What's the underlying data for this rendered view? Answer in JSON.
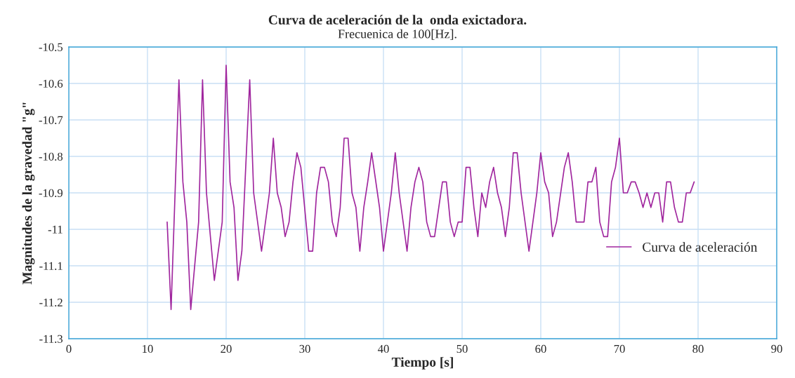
{
  "chart_data": {
    "type": "line",
    "title": "Curva de aceleración de la  onda exictadora.",
    "subtitle": "Frecuenica de 100[Hz].",
    "xlabel": "Tiempo [s]",
    "ylabel": "Magnitudes de la gravedad \"g\"",
    "series": [
      {
        "name": "Curva de aceleración",
        "color": "#a0269e",
        "x": [
          12.5,
          13.0,
          14.0,
          14.5,
          15.0,
          15.5,
          16.5,
          17.0,
          17.5,
          18.5,
          19.5,
          20.0,
          20.5,
          21.0,
          21.5,
          22.0,
          23.0,
          23.5,
          24.5,
          25.5,
          26.0,
          26.5,
          27.0,
          27.5,
          28.0,
          28.5,
          29.0,
          29.5,
          30.5,
          31.0,
          31.5,
          32.0,
          32.5,
          33.0,
          33.5,
          34.0,
          34.5,
          35.0,
          35.5,
          36.0,
          36.5,
          37.0,
          37.5,
          38.0,
          38.5,
          39.5,
          40.0,
          41.0,
          41.5,
          42.0,
          43.0,
          43.5,
          44.0,
          44.5,
          45.0,
          45.5,
          46.0,
          46.5,
          47.5,
          48.0,
          48.5,
          49.0,
          49.5,
          50.0,
          50.5,
          51.0,
          51.5,
          52.0,
          52.5,
          53.0,
          53.5,
          54.0,
          54.5,
          55.0,
          55.5,
          56.0,
          56.5,
          57.0,
          57.5,
          58.5,
          59.5,
          60.0,
          60.5,
          61.0,
          61.5,
          62.0,
          63.0,
          63.5,
          64.0,
          64.5,
          65.0,
          65.5,
          66.0,
          66.5,
          67.0,
          67.5,
          68.0,
          68.5,
          69.0,
          69.5,
          70.0,
          70.5,
          71.0,
          71.5,
          72.0,
          72.5,
          73.0,
          73.5,
          74.0,
          74.5,
          75.0,
          75.5,
          76.0,
          76.5,
          77.0,
          77.5,
          78.0,
          78.5,
          79.0,
          79.5
        ],
        "values": [
          -10.98,
          -11.22,
          -10.59,
          -10.87,
          -10.98,
          -11.22,
          -10.98,
          -10.59,
          -10.9,
          -11.14,
          -10.98,
          -10.55,
          -10.87,
          -10.94,
          -11.14,
          -11.06,
          -10.59,
          -10.9,
          -11.06,
          -10.9,
          -10.75,
          -10.9,
          -10.94,
          -11.02,
          -10.98,
          -10.87,
          -10.79,
          -10.83,
          -11.06,
          -11.06,
          -10.9,
          -10.83,
          -10.83,
          -10.87,
          -10.98,
          -11.02,
          -10.94,
          -10.75,
          -10.75,
          -10.9,
          -10.94,
          -11.06,
          -10.94,
          -10.87,
          -10.79,
          -10.94,
          -11.06,
          -10.9,
          -10.79,
          -10.9,
          -11.06,
          -10.94,
          -10.87,
          -10.83,
          -10.87,
          -10.98,
          -11.02,
          -11.02,
          -10.87,
          -10.87,
          -10.98,
          -11.02,
          -10.98,
          -10.98,
          -10.83,
          -10.83,
          -10.94,
          -11.02,
          -10.9,
          -10.94,
          -10.87,
          -10.83,
          -10.9,
          -10.94,
          -11.02,
          -10.94,
          -10.79,
          -10.79,
          -10.9,
          -11.06,
          -10.9,
          -10.79,
          -10.87,
          -10.9,
          -11.02,
          -10.98,
          -10.83,
          -10.79,
          -10.87,
          -10.98,
          -10.98,
          -10.98,
          -10.87,
          -10.87,
          -10.83,
          -10.98,
          -11.02,
          -11.02,
          -10.87,
          -10.83,
          -10.75,
          -10.9,
          -10.9,
          -10.87,
          -10.87,
          -10.9,
          -10.94,
          -10.9,
          -10.94,
          -10.9,
          -10.9,
          -10.98,
          -10.87,
          -10.87,
          -10.94,
          -10.98,
          -10.98,
          -10.9,
          -10.9,
          -10.87
        ]
      }
    ],
    "xlim": [
      0,
      90
    ],
    "xticks": [
      0,
      10,
      20,
      30,
      40,
      50,
      60,
      70,
      80,
      90
    ],
    "ylim": [
      -11.3,
      -10.5
    ],
    "yticks": [
      -11.3,
      -11.2,
      -11.1,
      -11,
      -10.9,
      -10.8,
      -10.7,
      -10.6,
      -10.5
    ],
    "grid": true,
    "legend": "right",
    "marker": "none",
    "line_style": "solid"
  }
}
